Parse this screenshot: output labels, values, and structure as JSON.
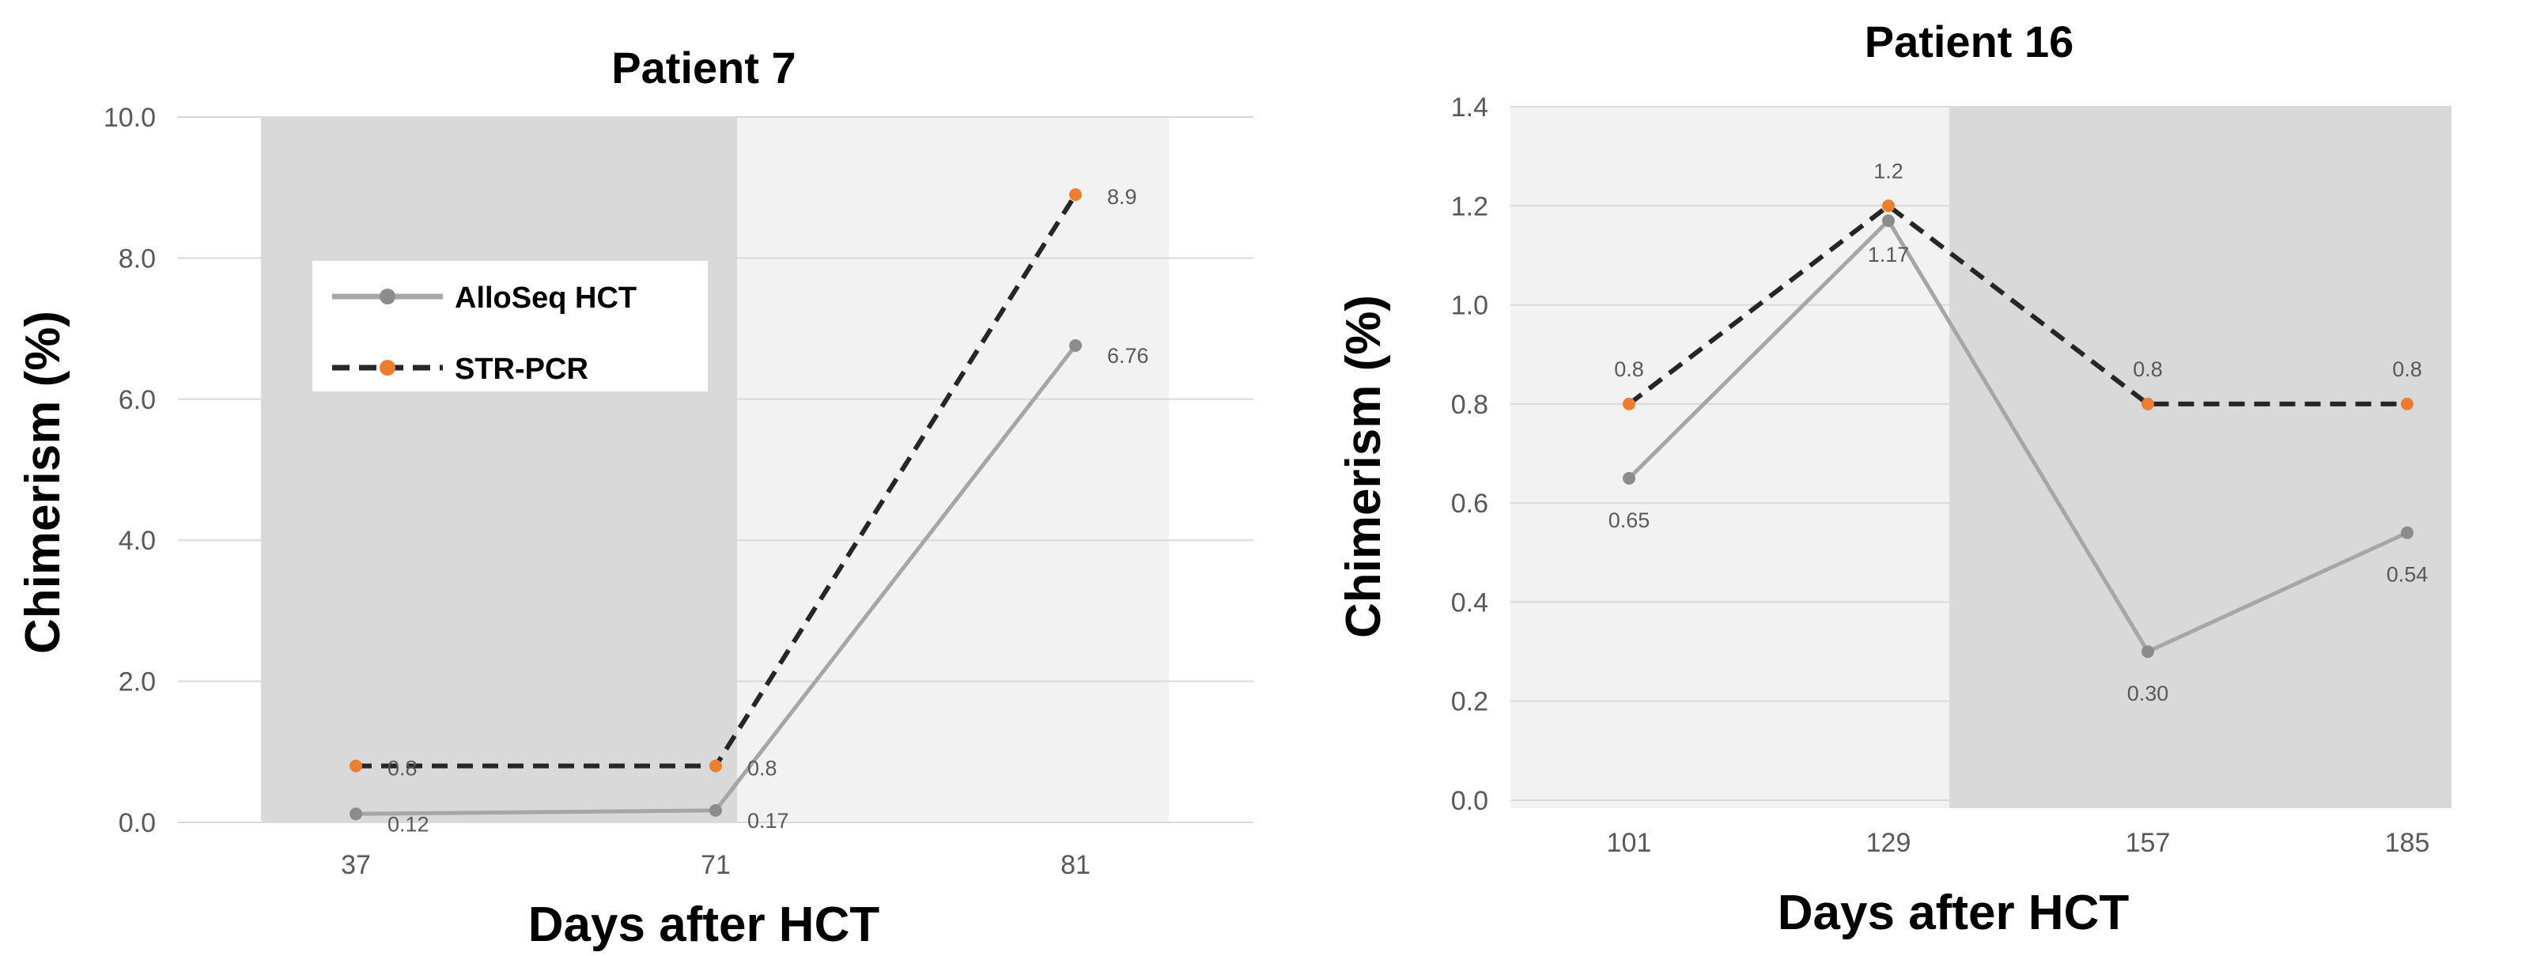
{
  "chart_data": [
    {
      "type": "line",
      "title": "Patient 7",
      "xlabel": "Days after HCT",
      "ylabel": "Chimerism (%)",
      "categories": [
        "37",
        "71",
        "81"
      ],
      "ylim": [
        0,
        10
      ],
      "yticks": [
        "0.0",
        "2.0",
        "4.0",
        "6.0",
        "8.0",
        "10.0"
      ],
      "grid": true,
      "legend": "upper-left",
      "shaded_bands": [
        {
          "from_category": "37",
          "to_category": "71",
          "color": "#d9d9d9"
        },
        {
          "from_category": "71",
          "to_category": "81",
          "color": "#f2f2f2"
        }
      ],
      "series": [
        {
          "name": "AlloSeq HCT",
          "values": [
            0.12,
            0.17,
            6.76
          ],
          "labels": [
            "0.12",
            "0.17",
            "6.76"
          ],
          "color": "#a6a6a6",
          "marker_color": "#8c8c8c",
          "style": "solid"
        },
        {
          "name": "STR-PCR",
          "values": [
            0.8,
            0.8,
            8.9
          ],
          "labels": [
            "0.8",
            "0.8",
            "8.9"
          ],
          "color": "#262626",
          "marker_color": "#ed7d31",
          "style": "dashed"
        }
      ]
    },
    {
      "type": "line",
      "title": "Patient 16",
      "xlabel": "Days after HCT",
      "ylabel": "Chimerism (%)",
      "categories": [
        "101",
        "129",
        "157",
        "185"
      ],
      "ylim": [
        0,
        1.4
      ],
      "yticks": [
        "0.0",
        "0.2",
        "0.4",
        "0.6",
        "0.8",
        "1.0",
        "1.2",
        "1.4"
      ],
      "grid": true,
      "legend": "none",
      "shaded_bands": [
        {
          "from_category": "101",
          "to_category": "129",
          "color": "#f2f2f2"
        },
        {
          "from_category": "129",
          "to_category": "185",
          "color": "#d9d9d9"
        }
      ],
      "series": [
        {
          "name": "AlloSeq HCT",
          "values": [
            0.65,
            1.17,
            0.3,
            0.54
          ],
          "labels": [
            "0.65",
            "1.17",
            "0.30",
            "0.54"
          ],
          "color": "#a6a6a6",
          "marker_color": "#8c8c8c",
          "style": "solid"
        },
        {
          "name": "STR-PCR",
          "values": [
            0.8,
            1.2,
            0.8,
            0.8
          ],
          "labels": [
            "0.8",
            "1.2",
            "0.8",
            "0.8"
          ],
          "color": "#262626",
          "marker_color": "#ed7d31",
          "style": "dashed"
        }
      ]
    }
  ]
}
